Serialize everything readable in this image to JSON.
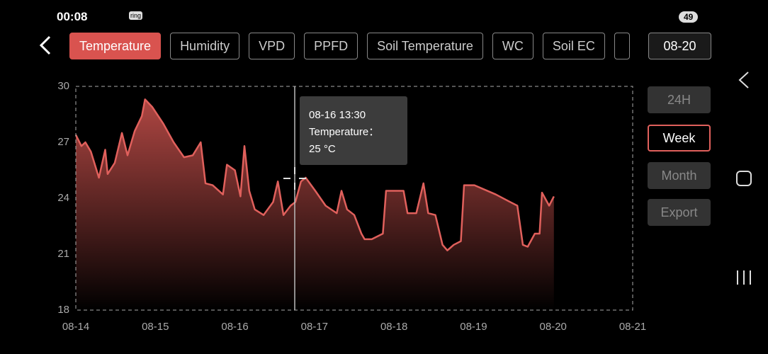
{
  "status_bar": {
    "time": "00:08",
    "icon_text": "ring",
    "battery": "49"
  },
  "tabs": [
    "Temperature",
    "Humidity",
    "VPD",
    "PPFD",
    "Soil Temperature",
    "WC",
    "Soil EC"
  ],
  "date": "08-20",
  "range_buttons": [
    "24H",
    "Week",
    "Month",
    "Export"
  ],
  "tooltip": {
    "time": "08-16 13:30",
    "label": "Temperature：",
    "value": "25 °C"
  },
  "chart": {
    "type": "line",
    "color": "#e0605c",
    "x": [
      0,
      0.07,
      0.12,
      0.19,
      0.29,
      0.37,
      0.4,
      0.49,
      0.58,
      0.65,
      0.74,
      0.83,
      0.87,
      0.96,
      1.1,
      1.23,
      1.36,
      1.47,
      1.57,
      1.63,
      1.72,
      1.85,
      1.9,
      2.0,
      2.07,
      2.12,
      2.18,
      2.25,
      2.36,
      2.48,
      2.54,
      2.61,
      2.7,
      2.76,
      2.83,
      2.89,
      3.01,
      3.14,
      3.28,
      3.34,
      3.41,
      3.5,
      3.59,
      3.63,
      3.72,
      3.86,
      3.9,
      4.12,
      4.17,
      4.28,
      4.37,
      4.43,
      4.52,
      4.61,
      4.67,
      4.75,
      4.84,
      4.88,
      5.01,
      5.28,
      5.46,
      5.55,
      5.62,
      5.68,
      5.77,
      5.83,
      5.86,
      5.95,
      6.01
    ],
    "values": [
      27.4,
      26.8,
      27.0,
      26.5,
      25.1,
      26.6,
      25.3,
      25.9,
      27.5,
      26.3,
      27.6,
      28.4,
      29.3,
      28.9,
      28.0,
      27.0,
      26.2,
      26.3,
      27.0,
      24.8,
      24.7,
      24.2,
      25.8,
      25.5,
      24.1,
      26.8,
      24.4,
      23.4,
      23.1,
      23.8,
      24.9,
      23.1,
      23.6,
      23.8,
      24.9,
      25.1,
      24.4,
      23.6,
      23.2,
      24.4,
      23.4,
      23.1,
      22.1,
      21.8,
      21.8,
      22.1,
      24.4,
      24.4,
      23.2,
      23.2,
      24.8,
      23.2,
      23.1,
      21.5,
      21.2,
      21.5,
      21.7,
      24.7,
      24.7,
      24.2,
      23.8,
      23.6,
      21.5,
      21.4,
      22.1,
      22.1,
      24.3,
      23.6,
      24.1
    ],
    "xlim": [
      0,
      7
    ],
    "xticks": [
      {
        "value": 0,
        "label": "08-14"
      },
      {
        "value": 1,
        "label": "08-15"
      },
      {
        "value": 2,
        "label": "08-16"
      },
      {
        "value": 3,
        "label": "08-17"
      },
      {
        "value": 4,
        "label": "08-18"
      },
      {
        "value": 5,
        "label": "08-19"
      },
      {
        "value": 6,
        "label": "08-20"
      },
      {
        "value": 7,
        "label": "08-21"
      }
    ],
    "ylim": [
      18,
      30
    ],
    "yticks": [
      18,
      21,
      24,
      27,
      30
    ]
  }
}
